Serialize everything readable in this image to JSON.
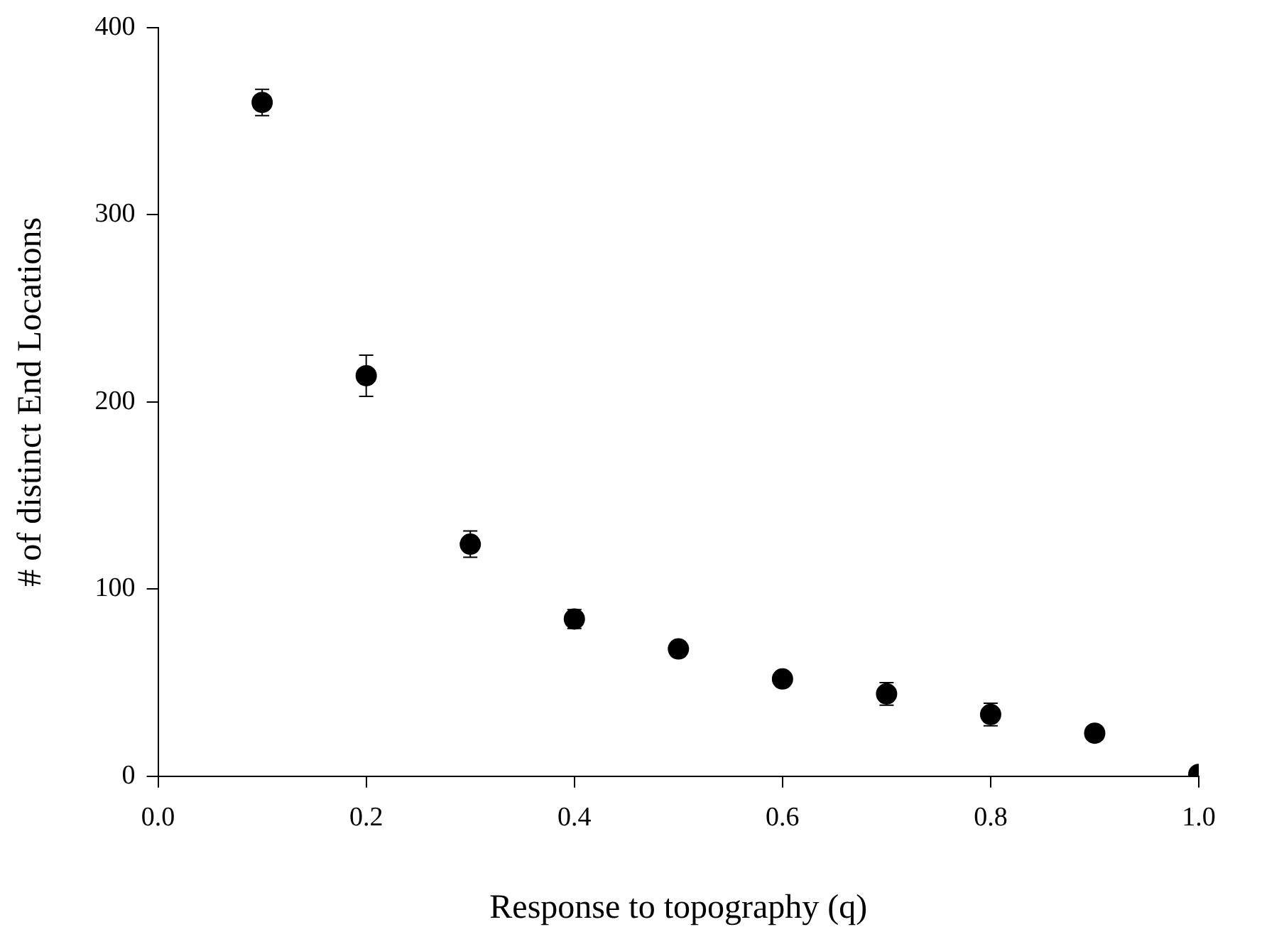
{
  "chart_data": {
    "type": "scatter",
    "xlabel": "Response to topography (q)",
    "ylabel": "# of distinct End Locations",
    "x": [
      0.1,
      0.2,
      0.3,
      0.4,
      0.5,
      0.6,
      0.7,
      0.8,
      0.9,
      1.0
    ],
    "series": [
      {
        "color": "#000000",
        "values": [
          360,
          214,
          124,
          84,
          68,
          52,
          44,
          33,
          23,
          1
        ],
        "errors": [
          7,
          11,
          7,
          5,
          4,
          null,
          6,
          6,
          null,
          null
        ]
      }
    ],
    "xlim": [
      0,
      1
    ],
    "xticks": [
      {
        "value": 0,
        "label": "0.0"
      },
      {
        "value": 0.2,
        "label": "0.2"
      },
      {
        "value": 0.4,
        "label": "0.4"
      },
      {
        "value": 0.6,
        "label": "0.6"
      },
      {
        "value": 0.8,
        "label": "0.8"
      },
      {
        "value": 1,
        "label": "1.0"
      }
    ],
    "ylim": [
      0,
      400
    ],
    "yticks": [
      0,
      100,
      200,
      300,
      400
    ],
    "grid": false,
    "legend": false,
    "marker": "circle"
  }
}
